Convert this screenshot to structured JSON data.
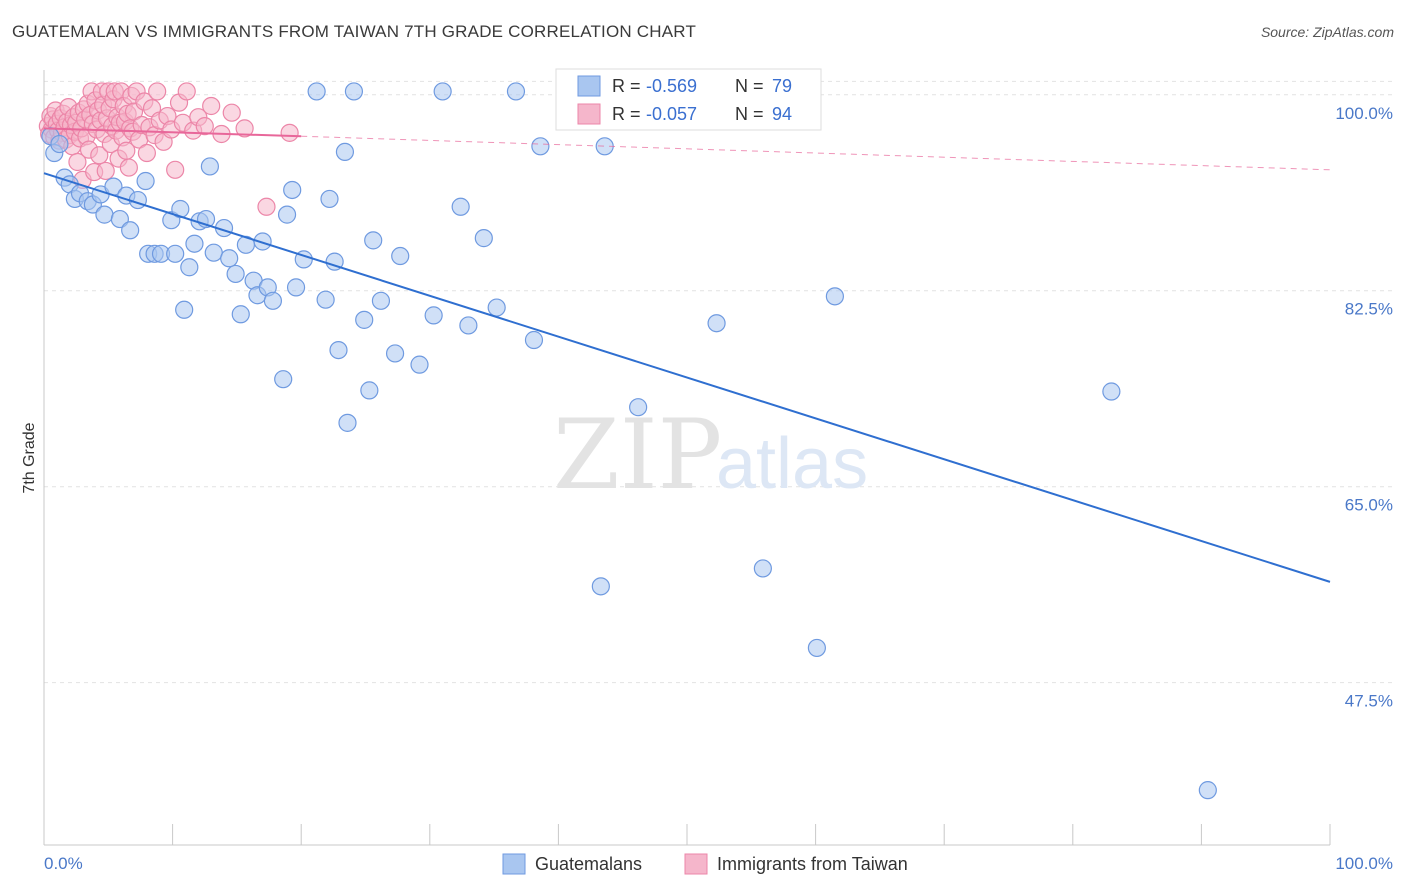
{
  "header": {
    "title": "GUATEMALAN VS IMMIGRANTS FROM TAIWAN 7TH GRADE CORRELATION CHART",
    "source": "Source: ZipAtlas.com"
  },
  "watermark": {
    "zip": "ZIP",
    "atlas": "atlas"
  },
  "colors": {
    "blue_fill": "#a9c6f0",
    "blue_stroke": "#6f9ae0",
    "blue_line": "#2f6fd0",
    "pink_fill": "#f5b6cb",
    "pink_stroke": "#ec86a8",
    "pink_line": "#e8679a",
    "tick_text": "#4a78c8",
    "grid": "#e2e2e2"
  },
  "chart_data": {
    "type": "scatter",
    "title": "GUATEMALAN VS IMMIGRANTS FROM TAIWAN 7TH GRADE CORRELATION CHART",
    "xlabel": "",
    "ylabel": "7th Grade",
    "xlim": [
      0,
      100
    ],
    "ylim": [
      33,
      101.5
    ],
    "x_tick_labels": [
      "0.0%",
      "100.0%"
    ],
    "y_ticks": [
      {
        "value": 47.5,
        "label": "47.5%"
      },
      {
        "value": 65.0,
        "label": "65.0%"
      },
      {
        "value": 82.5,
        "label": "82.5%"
      },
      {
        "value": 100.0,
        "label": "100.0%"
      }
    ],
    "legend_box": [
      {
        "r_label": "R =",
        "r_value": "-0.569",
        "n_label": "N =",
        "n_value": "79"
      },
      {
        "r_label": "R =",
        "r_value": "-0.057",
        "n_label": "N =",
        "n_value": "94"
      }
    ],
    "series": [
      {
        "name": "Guatemalans",
        "color": "blue",
        "r": -0.569,
        "n": 79,
        "trend": {
          "x0": 0,
          "y0": 93.0,
          "x1": 100,
          "y1": 56.5
        },
        "points": [
          [
            0.5,
            96.3
          ],
          [
            0.8,
            94.8
          ],
          [
            1.2,
            95.6
          ],
          [
            1.6,
            92.6
          ],
          [
            2.0,
            92.0
          ],
          [
            2.4,
            90.7
          ],
          [
            2.8,
            91.2
          ],
          [
            3.4,
            90.5
          ],
          [
            3.8,
            90.2
          ],
          [
            4.4,
            91.1
          ],
          [
            4.7,
            89.3
          ],
          [
            5.4,
            91.8
          ],
          [
            5.9,
            88.9
          ],
          [
            6.4,
            91.0
          ],
          [
            6.7,
            87.9
          ],
          [
            7.3,
            90.6
          ],
          [
            7.9,
            92.3
          ],
          [
            8.1,
            85.8
          ],
          [
            8.6,
            85.8
          ],
          [
            9.1,
            85.8
          ],
          [
            9.9,
            88.8
          ],
          [
            10.2,
            85.8
          ],
          [
            10.6,
            89.8
          ],
          [
            10.9,
            80.8
          ],
          [
            11.3,
            84.6
          ],
          [
            11.7,
            86.7
          ],
          [
            12.1,
            88.7
          ],
          [
            12.6,
            88.9
          ],
          [
            12.9,
            93.6
          ],
          [
            13.2,
            85.9
          ],
          [
            14.0,
            88.1
          ],
          [
            14.4,
            85.4
          ],
          [
            14.9,
            84.0
          ],
          [
            15.3,
            80.4
          ],
          [
            15.7,
            86.6
          ],
          [
            16.3,
            83.4
          ],
          [
            16.6,
            82.1
          ],
          [
            17.0,
            86.9
          ],
          [
            17.4,
            82.8
          ],
          [
            17.8,
            81.6
          ],
          [
            18.6,
            74.6
          ],
          [
            18.9,
            89.3
          ],
          [
            19.3,
            91.5
          ],
          [
            19.6,
            82.8
          ],
          [
            20.2,
            85.3
          ],
          [
            21.2,
            100.3
          ],
          [
            21.9,
            81.7
          ],
          [
            22.2,
            90.7
          ],
          [
            22.6,
            85.1
          ],
          [
            22.9,
            77.2
          ],
          [
            23.4,
            94.9
          ],
          [
            23.6,
            70.7
          ],
          [
            24.1,
            100.3
          ],
          [
            24.9,
            79.9
          ],
          [
            25.3,
            73.6
          ],
          [
            25.6,
            87.0
          ],
          [
            26.2,
            81.6
          ],
          [
            27.3,
            76.9
          ],
          [
            27.7,
            85.6
          ],
          [
            29.2,
            75.9
          ],
          [
            30.3,
            80.3
          ],
          [
            31.0,
            100.3
          ],
          [
            32.4,
            90.0
          ],
          [
            33.0,
            79.4
          ],
          [
            34.2,
            87.2
          ],
          [
            35.2,
            81.0
          ],
          [
            36.7,
            100.3
          ],
          [
            38.1,
            78.1
          ],
          [
            38.6,
            95.4
          ],
          [
            43.6,
            95.4
          ],
          [
            43.3,
            56.1
          ],
          [
            46.2,
            72.1
          ],
          [
            52.3,
            79.6
          ],
          [
            55.9,
            57.7
          ],
          [
            58.8,
            100.3
          ],
          [
            60.1,
            50.6
          ],
          [
            61.5,
            82.0
          ],
          [
            90.5,
            37.9
          ],
          [
            83.0,
            73.5
          ]
        ]
      },
      {
        "name": "Immigrants from Taiwan",
        "color": "pink",
        "r": -0.057,
        "n": 94,
        "trend_solid": {
          "x0": 0,
          "y0": 97.0,
          "x1": 20,
          "y1": 96.3
        },
        "trend_dashed": {
          "x0": 20,
          "y0": 96.3,
          "x1": 100,
          "y1": 93.3
        },
        "points": [
          [
            0.3,
            97.2
          ],
          [
            0.4,
            96.5
          ],
          [
            0.5,
            98.1
          ],
          [
            0.6,
            96.9
          ],
          [
            0.7,
            97.8
          ],
          [
            0.8,
            96.2
          ],
          [
            0.9,
            98.6
          ],
          [
            1.0,
            97.4
          ],
          [
            1.1,
            96.8
          ],
          [
            1.2,
            95.9
          ],
          [
            1.3,
            97.9
          ],
          [
            1.4,
            96.6
          ],
          [
            1.5,
            98.3
          ],
          [
            1.6,
            97.1
          ],
          [
            1.7,
            96.0
          ],
          [
            1.8,
            97.6
          ],
          [
            1.9,
            98.9
          ],
          [
            2.0,
            96.4
          ],
          [
            2.1,
            97.3
          ],
          [
            2.2,
            95.4
          ],
          [
            2.3,
            98.0
          ],
          [
            2.4,
            96.7
          ],
          [
            2.5,
            97.5
          ],
          [
            2.6,
            94.0
          ],
          [
            2.7,
            98.4
          ],
          [
            2.8,
            96.1
          ],
          [
            2.9,
            97.0
          ],
          [
            3.0,
            92.4
          ],
          [
            3.1,
            98.7
          ],
          [
            3.2,
            97.8
          ],
          [
            3.3,
            96.3
          ],
          [
            3.4,
            99.2
          ],
          [
            3.5,
            95.1
          ],
          [
            3.6,
            98.2
          ],
          [
            3.7,
            100.3
          ],
          [
            3.8,
            97.4
          ],
          [
            3.9,
            93.1
          ],
          [
            4.0,
            99.5
          ],
          [
            4.1,
            96.9
          ],
          [
            4.2,
            98.6
          ],
          [
            4.3,
            94.6
          ],
          [
            4.4,
            97.7
          ],
          [
            4.5,
            100.3
          ],
          [
            4.6,
            99.1
          ],
          [
            4.7,
            96.5
          ],
          [
            4.8,
            93.2
          ],
          [
            4.9,
            97.9
          ],
          [
            5.0,
            100.3
          ],
          [
            5.1,
            98.8
          ],
          [
            5.2,
            95.6
          ],
          [
            5.3,
            97.2
          ],
          [
            5.4,
            99.6
          ],
          [
            5.5,
            100.3
          ],
          [
            5.6,
            96.8
          ],
          [
            5.7,
            98.0
          ],
          [
            5.8,
            94.3
          ],
          [
            5.9,
            97.5
          ],
          [
            6.0,
            100.3
          ],
          [
            6.1,
            96.2
          ],
          [
            6.2,
            99.0
          ],
          [
            6.3,
            97.6
          ],
          [
            6.4,
            95.0
          ],
          [
            6.5,
            98.3
          ],
          [
            6.6,
            93.5
          ],
          [
            6.7,
            97.0
          ],
          [
            6.8,
            99.9
          ],
          [
            6.9,
            96.7
          ],
          [
            7.0,
            98.5
          ],
          [
            7.2,
            100.3
          ],
          [
            7.4,
            96.0
          ],
          [
            7.6,
            97.3
          ],
          [
            7.8,
            99.4
          ],
          [
            8.0,
            94.8
          ],
          [
            8.2,
            97.1
          ],
          [
            8.4,
            98.8
          ],
          [
            8.6,
            96.4
          ],
          [
            8.8,
            100.3
          ],
          [
            9.0,
            97.7
          ],
          [
            9.3,
            95.8
          ],
          [
            9.6,
            98.1
          ],
          [
            9.9,
            96.9
          ],
          [
            10.2,
            93.3
          ],
          [
            10.5,
            99.3
          ],
          [
            10.8,
            97.5
          ],
          [
            11.1,
            100.3
          ],
          [
            11.6,
            96.8
          ],
          [
            12.0,
            98.0
          ],
          [
            12.5,
            97.2
          ],
          [
            13.0,
            99.0
          ],
          [
            13.8,
            96.5
          ],
          [
            14.6,
            98.4
          ],
          [
            15.6,
            97.0
          ],
          [
            17.3,
            90.0
          ],
          [
            19.1,
            96.6
          ]
        ]
      }
    ],
    "bottom_legend": [
      "Guatemalans",
      "Immigrants from Taiwan"
    ]
  }
}
